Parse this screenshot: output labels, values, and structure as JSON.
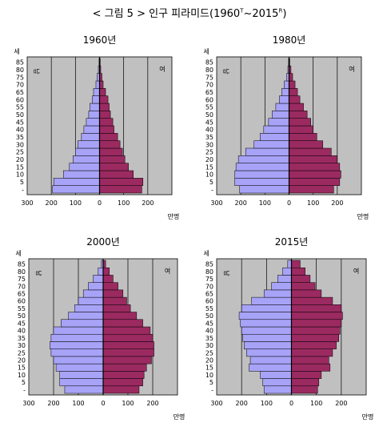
{
  "figure": {
    "title_prefix": "< 그림 5 > 인구 피라미드(1960",
    "title_sup1": "T",
    "title_mid": "~2015",
    "title_sup2": "R",
    "title_suffix": ")"
  },
  "colors": {
    "male": "#a7a3f7",
    "female": "#9b2a61",
    "plot_bg": "#c0c0c0",
    "bar_edge": "#000000"
  },
  "chart_data": [
    {
      "type": "bar",
      "orientation": "horizontal-pyramid",
      "title": "1960년",
      "y_unit_label": "세",
      "x_unit_label": "만명",
      "male_label": "남",
      "female_label": "여",
      "xlim": [
        -300,
        300
      ],
      "x_ticks": [
        -300,
        -200,
        -100,
        0,
        100,
        200
      ],
      "x_tick_labels": [
        "300",
        "200",
        "100",
        "0",
        "100",
        "200"
      ],
      "grid": true,
      "age_tick_labels": [
        "-",
        "5",
        "10",
        "15",
        "20",
        "25",
        "30",
        "35",
        "40",
        "45",
        "50",
        "55",
        "60",
        "65",
        "70",
        "75",
        "80",
        "85"
      ],
      "categories": [
        "0-4",
        "5-9",
        "10-14",
        "15-19",
        "20-24",
        "25-29",
        "30-34",
        "35-39",
        "40-44",
        "45-49",
        "50-54",
        "55-59",
        "60-64",
        "65-69",
        "70-74",
        "75-79",
        "80-84",
        "85+"
      ],
      "series": [
        {
          "name": "남",
          "values": [
            195,
            190,
            150,
            125,
            110,
            100,
            90,
            75,
            65,
            55,
            45,
            40,
            30,
            25,
            15,
            10,
            5,
            2
          ]
        },
        {
          "name": "여",
          "values": [
            175,
            180,
            140,
            120,
            105,
            95,
            85,
            75,
            60,
            55,
            45,
            40,
            35,
            25,
            15,
            10,
            5,
            3
          ]
        }
      ]
    },
    {
      "type": "bar",
      "orientation": "horizontal-pyramid",
      "title": "1980년",
      "y_unit_label": "세",
      "x_unit_label": "만명",
      "male_label": "남",
      "female_label": "여",
      "xlim": [
        -300,
        300
      ],
      "x_ticks": [
        -300,
        -200,
        -100,
        0,
        100,
        200
      ],
      "x_tick_labels": [
        "300",
        "200",
        "100",
        "0",
        "100",
        "200"
      ],
      "grid": true,
      "age_tick_labels": [
        "-",
        "5",
        "10",
        "15",
        "20",
        "25",
        "30",
        "35",
        "40",
        "45",
        "50",
        "55",
        "60",
        "65",
        "70",
        "75",
        "80",
        "85"
      ],
      "categories": [
        "0-4",
        "5-9",
        "10-14",
        "15-19",
        "20-24",
        "25-29",
        "30-34",
        "35-39",
        "40-44",
        "45-49",
        "50-54",
        "55-59",
        "60-64",
        "65-69",
        "70-74",
        "75-79",
        "80-84",
        "85+"
      ],
      "series": [
        {
          "name": "남",
          "values": [
            205,
            225,
            225,
            220,
            210,
            180,
            145,
            120,
            105,
            85,
            70,
            55,
            40,
            30,
            20,
            10,
            5,
            2
          ]
        },
        {
          "name": "여",
          "values": [
            185,
            210,
            215,
            210,
            200,
            175,
            140,
            115,
            100,
            90,
            75,
            60,
            45,
            35,
            25,
            15,
            8,
            3
          ]
        }
      ]
    },
    {
      "type": "bar",
      "orientation": "horizontal-pyramid",
      "title": "2000년",
      "y_unit_label": "세",
      "x_unit_label": "만명",
      "male_label": "남",
      "female_label": "여",
      "xlim": [
        -300,
        300
      ],
      "x_ticks": [
        -300,
        -200,
        -100,
        0,
        100,
        200
      ],
      "x_tick_labels": [
        "300",
        "200",
        "100",
        "0",
        "100",
        "200"
      ],
      "grid": true,
      "age_tick_labels": [
        "-",
        "5",
        "10",
        "15",
        "20",
        "25",
        "30",
        "35",
        "40",
        "45",
        "50",
        "55",
        "60",
        "65",
        "70",
        "75",
        "80",
        "85"
      ],
      "categories": [
        "0-4",
        "5-9",
        "10-14",
        "15-19",
        "20-24",
        "25-29",
        "30-34",
        "35-39",
        "40-44",
        "45-49",
        "50-54",
        "55-59",
        "60-64",
        "65-69",
        "70-74",
        "75-79",
        "80-84",
        "85+"
      ],
      "series": [
        {
          "name": "남",
          "values": [
            155,
            175,
            175,
            190,
            200,
            210,
            215,
            210,
            200,
            170,
            140,
            115,
            100,
            80,
            60,
            40,
            20,
            7
          ]
        },
        {
          "name": "여",
          "values": [
            145,
            160,
            165,
            175,
            195,
            205,
            205,
            200,
            190,
            160,
            135,
            110,
            95,
            80,
            60,
            40,
            25,
            10
          ]
        }
      ]
    },
    {
      "type": "bar",
      "orientation": "horizontal-pyramid",
      "title": "2015년",
      "y_unit_label": "세",
      "x_unit_label": "만명",
      "male_label": "남",
      "female_label": "여",
      "xlim": [
        -300,
        300
      ],
      "x_ticks": [
        -300,
        -200,
        -100,
        0,
        100,
        200
      ],
      "x_tick_labels": [
        "300",
        "200",
        "100",
        "0",
        "100",
        "200"
      ],
      "grid": true,
      "age_tick_labels": [
        "-",
        "5",
        "10",
        "15",
        "20",
        "25",
        "30",
        "35",
        "40",
        "45",
        "50",
        "55",
        "60",
        "65",
        "70",
        "75",
        "80",
        "85"
      ],
      "categories": [
        "0-4",
        "5-9",
        "10-14",
        "15-19",
        "20-24",
        "25-29",
        "30-34",
        "35-39",
        "40-44",
        "45-49",
        "50-54",
        "55-59",
        "60-64",
        "65-69",
        "70-74",
        "75-79",
        "80-84",
        "85+"
      ],
      "series": [
        {
          "name": "남",
          "values": [
            110,
            115,
            125,
            170,
            165,
            180,
            190,
            195,
            200,
            205,
            210,
            200,
            160,
            110,
            80,
            55,
            35,
            15
          ]
        },
        {
          "name": "여",
          "values": [
            105,
            110,
            120,
            155,
            150,
            165,
            180,
            190,
            195,
            200,
            205,
            200,
            165,
            120,
            95,
            75,
            55,
            35
          ]
        }
      ]
    }
  ]
}
